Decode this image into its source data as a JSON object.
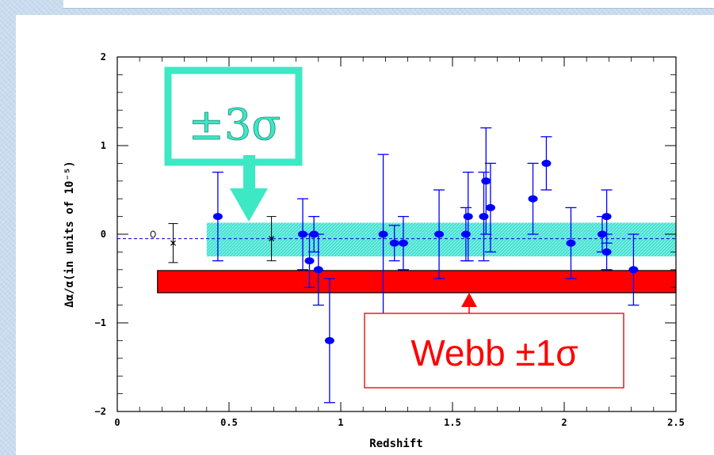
{
  "chart_data": {
    "type": "scatter",
    "title": "",
    "xlabel": "Redshift",
    "ylabel": "Δα/α(in units of 10⁻⁵)",
    "xlim": [
      0,
      2.5
    ],
    "ylim": [
      -2,
      2
    ],
    "x_ticks": [
      0,
      0.5,
      1,
      1.5,
      2,
      2.5
    ],
    "x_tick_labels": [
      "0",
      "0.5",
      "1",
      "1.5",
      "2",
      "2.5"
    ],
    "y_ticks": [
      -2,
      -1,
      0,
      1,
      2
    ],
    "y_tick_labels": [
      "−2",
      "−1",
      "0",
      "1",
      "2"
    ],
    "grid": false,
    "points": [
      {
        "x": 0.45,
        "y": 0.2,
        "err": 0.5
      },
      {
        "x": 0.83,
        "y": 0.0,
        "err": 0.4
      },
      {
        "x": 0.86,
        "y": -0.3,
        "err": 0.3
      },
      {
        "x": 0.88,
        "y": 0.0,
        "err": 0.2
      },
      {
        "x": 0.9,
        "y": -0.4,
        "err": 0.4
      },
      {
        "x": 0.95,
        "y": -1.2,
        "err": 0.7
      },
      {
        "x": 1.19,
        "y": 0.0,
        "err": 0.9
      },
      {
        "x": 1.24,
        "y": -0.1,
        "err": 0.2
      },
      {
        "x": 1.28,
        "y": -0.1,
        "err": 0.3
      },
      {
        "x": 1.44,
        "y": 0.0,
        "err": 0.5
      },
      {
        "x": 1.56,
        "y": 0.0,
        "err": 0.3
      },
      {
        "x": 1.57,
        "y": 0.2,
        "err": 0.5
      },
      {
        "x": 1.64,
        "y": 0.2,
        "err": 0.5
      },
      {
        "x": 1.65,
        "y": 0.6,
        "err": 0.6
      },
      {
        "x": 1.67,
        "y": 0.3,
        "err": 0.5
      },
      {
        "x": 1.86,
        "y": 0.4,
        "err": 0.4
      },
      {
        "x": 1.92,
        "y": 0.8,
        "err": 0.3
      },
      {
        "x": 2.03,
        "y": -0.1,
        "err": 0.4
      },
      {
        "x": 2.17,
        "y": 0.0,
        "err": 0.2
      },
      {
        "x": 2.19,
        "y": 0.2,
        "err": 0.3
      },
      {
        "x": 2.19,
        "y": -0.2,
        "err": 0.2
      },
      {
        "x": 2.31,
        "y": -0.4,
        "err": 0.4
      }
    ],
    "comparison_points": [
      {
        "x": 0.16,
        "y": 0.0,
        "marker": "open-circle"
      },
      {
        "x": 0.25,
        "y": -0.1,
        "err": 0.22,
        "marker": "cross"
      },
      {
        "x": 0.69,
        "y": -0.05,
        "err": 0.25,
        "marker": "cross"
      }
    ],
    "mean_line_y": -0.05,
    "sigma3_band": {
      "x": [
        0.4,
        2.5
      ],
      "y": [
        -0.25,
        0.13
      ],
      "color": "#40e0d0"
    },
    "webb_band": {
      "x": [
        0.18,
        2.5
      ],
      "y": [
        -0.66,
        -0.41
      ],
      "color": "#ff0000"
    },
    "annotations": {
      "sigma3_label": "±3σ",
      "sigma3_color": "#3de8c4",
      "webb_label": "Webb ±1σ",
      "webb_color": "#ff0000"
    },
    "point_color": "#0000ff",
    "comparison_color": "#000000"
  }
}
